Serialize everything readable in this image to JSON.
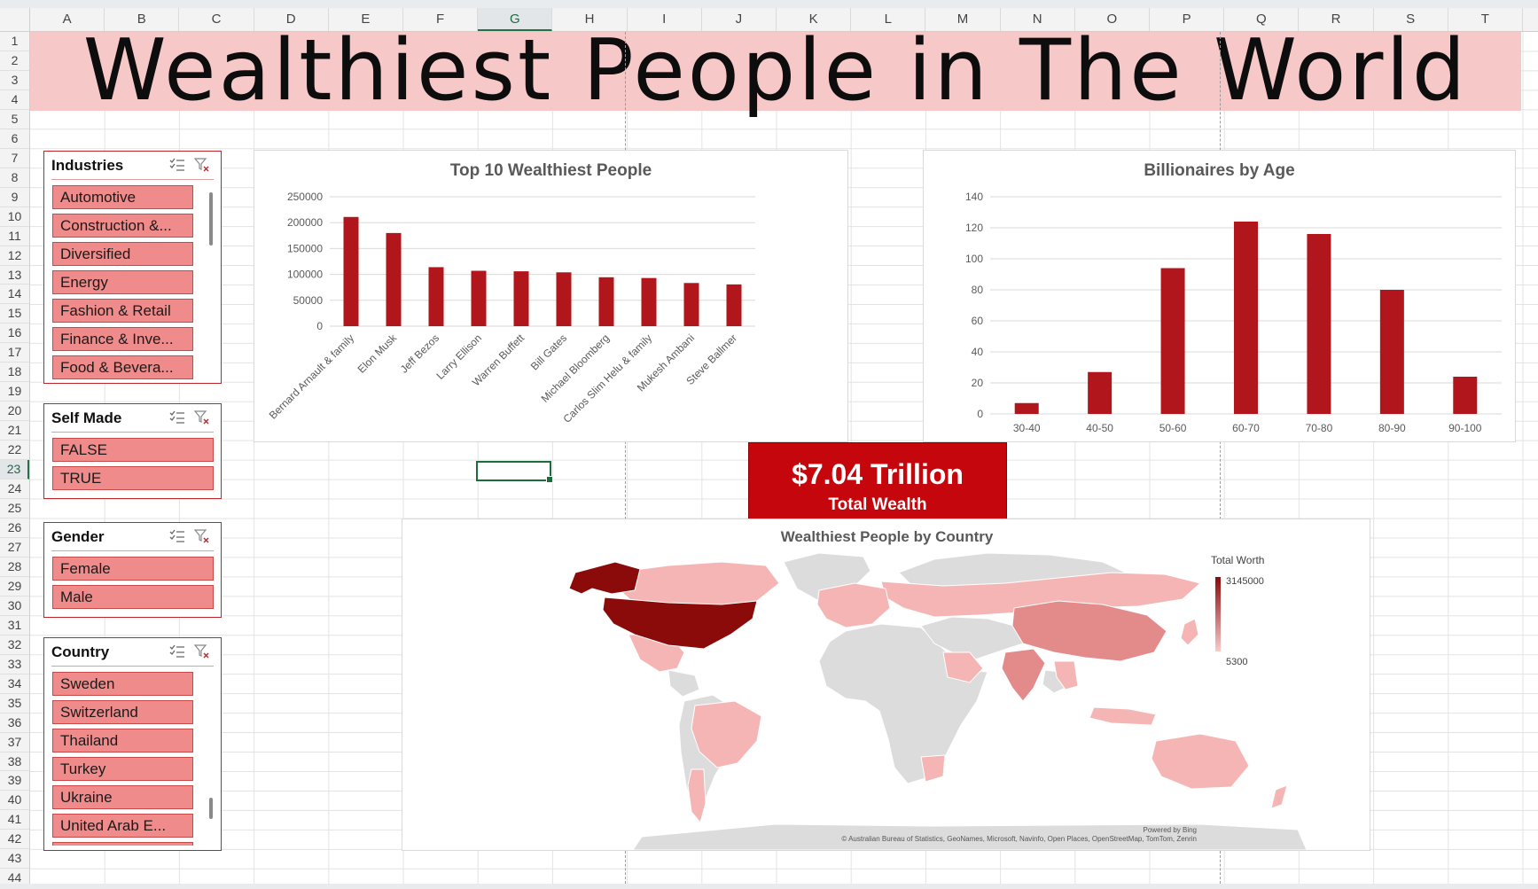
{
  "sheet": {
    "columns": [
      "A",
      "B",
      "C",
      "D",
      "E",
      "F",
      "G",
      "H",
      "I",
      "J",
      "K",
      "L",
      "M",
      "N",
      "O",
      "P",
      "Q",
      "R",
      "S",
      "T"
    ],
    "rows": [
      "1",
      "2",
      "3",
      "4",
      "5",
      "6",
      "7",
      "8",
      "9",
      "10",
      "11",
      "12",
      "13",
      "14",
      "15",
      "16",
      "17",
      "18",
      "19",
      "20",
      "21",
      "22",
      "23",
      "24",
      "25",
      "26",
      "27",
      "28",
      "29",
      "30",
      "31",
      "32",
      "33",
      "34",
      "35",
      "36",
      "37",
      "38",
      "39",
      "40",
      "41",
      "42",
      "43",
      "44"
    ],
    "selected_column": "G",
    "selected_row": "23"
  },
  "title": "Wealthiest People in The World",
  "slicers": {
    "industries": {
      "title": "Industries",
      "items": [
        "Automotive",
        "Construction &...",
        "Diversified",
        "Energy",
        "Fashion & Retail",
        "Finance & Inve...",
        "Food & Bevera..."
      ]
    },
    "self_made": {
      "title": "Self Made",
      "items": [
        "FALSE",
        "TRUE"
      ]
    },
    "gender": {
      "title": "Gender",
      "items": [
        "Female",
        "Male"
      ]
    },
    "country": {
      "title": "Country",
      "items": [
        "Sweden",
        "Switzerland",
        "Thailand",
        "Turkey",
        "Ukraine",
        "United Arab E..."
      ]
    }
  },
  "kpi": {
    "value": "$7.04 Trillion",
    "label": "Total Wealth"
  },
  "map": {
    "title": "Wealthiest People by Country",
    "legend_title": "Total Worth",
    "legend_max": "3145000",
    "legend_min": "5300",
    "powered_by": "Powered by Bing",
    "copyright": "© Australian Bureau of Statistics, GeoNames, Microsoft, Navinfo, Open Places, OpenStreetMap, TomTom, Zenrin",
    "colors": {
      "max": "#8b0a0a",
      "min": "#f8cccc",
      "no_data": "#dcdcdc"
    }
  },
  "colors": {
    "bar": "#b0161b",
    "banner": "#f6c8c8",
    "slicer_item": "#f08b8b",
    "kpi": "#c5070d"
  },
  "chart_data": [
    {
      "type": "bar",
      "title": "Top 10 Wealthiest People",
      "categories": [
        "Bernard Arnault & family",
        "Elon Musk",
        "Jeff Bezos",
        "Larry Ellison",
        "Warren Buffett",
        "Bill Gates",
        "Michael Bloomberg",
        "Carlos Slim Helu & family",
        "Mukesh Ambani",
        "Steve Ballmer"
      ],
      "values": [
        211000,
        180000,
        114000,
        107000,
        106000,
        104000,
        94500,
        93000,
        83400,
        80700
      ],
      "yticks": [
        "0",
        "50000",
        "100000",
        "150000",
        "200000",
        "250000"
      ],
      "ylim": [
        0,
        250000
      ],
      "grid": true,
      "legend": false
    },
    {
      "type": "bar",
      "title": "Billionaires by Age",
      "categories": [
        "30-40",
        "40-50",
        "50-60",
        "60-70",
        "70-80",
        "80-90",
        "90-100"
      ],
      "values": [
        7,
        27,
        94,
        124,
        116,
        80,
        24
      ],
      "yticks": [
        "0",
        "20",
        "40",
        "60",
        "80",
        "100",
        "120",
        "140"
      ],
      "ylim": [
        0,
        140
      ],
      "grid": true,
      "legend": false
    }
  ]
}
